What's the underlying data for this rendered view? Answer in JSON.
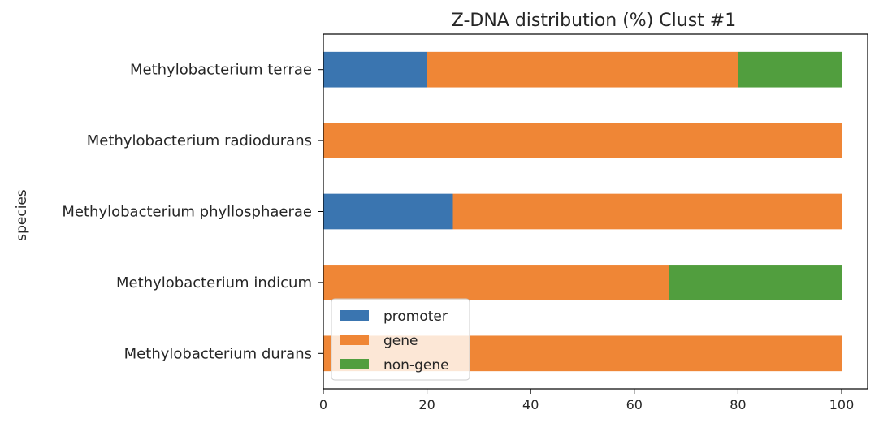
{
  "chart_data": {
    "type": "bar",
    "orientation": "horizontal",
    "stacked": true,
    "title": "Z-DNA distribution (%) Clust #1",
    "xlabel": "",
    "ylabel": "species",
    "xlim": [
      0,
      100
    ],
    "xticks": [
      "0",
      "20",
      "40",
      "60",
      "80",
      "100"
    ],
    "categories": [
      "Methylobacterium durans",
      "Methylobacterium indicum",
      "Methylobacterium phyllosphaerae",
      "Methylobacterium radiodurans",
      "Methylobacterium terrae"
    ],
    "series": [
      {
        "name": "promoter",
        "color": "#3a75b0",
        "values": [
          0,
          0,
          25,
          0,
          20
        ]
      },
      {
        "name": "gene",
        "color": "#ef8636",
        "values": [
          100,
          66.7,
          75,
          100,
          60
        ]
      },
      {
        "name": "non-gene",
        "color": "#519e3e",
        "values": [
          0,
          33.3,
          0,
          0,
          20
        ]
      }
    ],
    "legend": {
      "position": "lower-left"
    },
    "grid": false
  }
}
